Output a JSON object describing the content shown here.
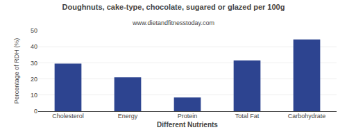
{
  "chart_data": {
    "type": "bar",
    "title": "Doughnuts, cake-type, chocolate, sugared or glazed per 100g",
    "subtitle": "www.dietandfitnesstoday.com",
    "xlabel": "Different Nutrients",
    "ylabel": "Percentage of RDH (%)",
    "categories": [
      "Cholesterol",
      "Energy",
      "Protein",
      "Total Fat",
      "Carbohydrate"
    ],
    "values": [
      29.5,
      21.0,
      8.5,
      31.5,
      44.5
    ],
    "color": "#2d4490",
    "ylim": [
      0,
      50
    ],
    "yticks": [
      0,
      10,
      20,
      30,
      40,
      50
    ],
    "grid": true
  }
}
